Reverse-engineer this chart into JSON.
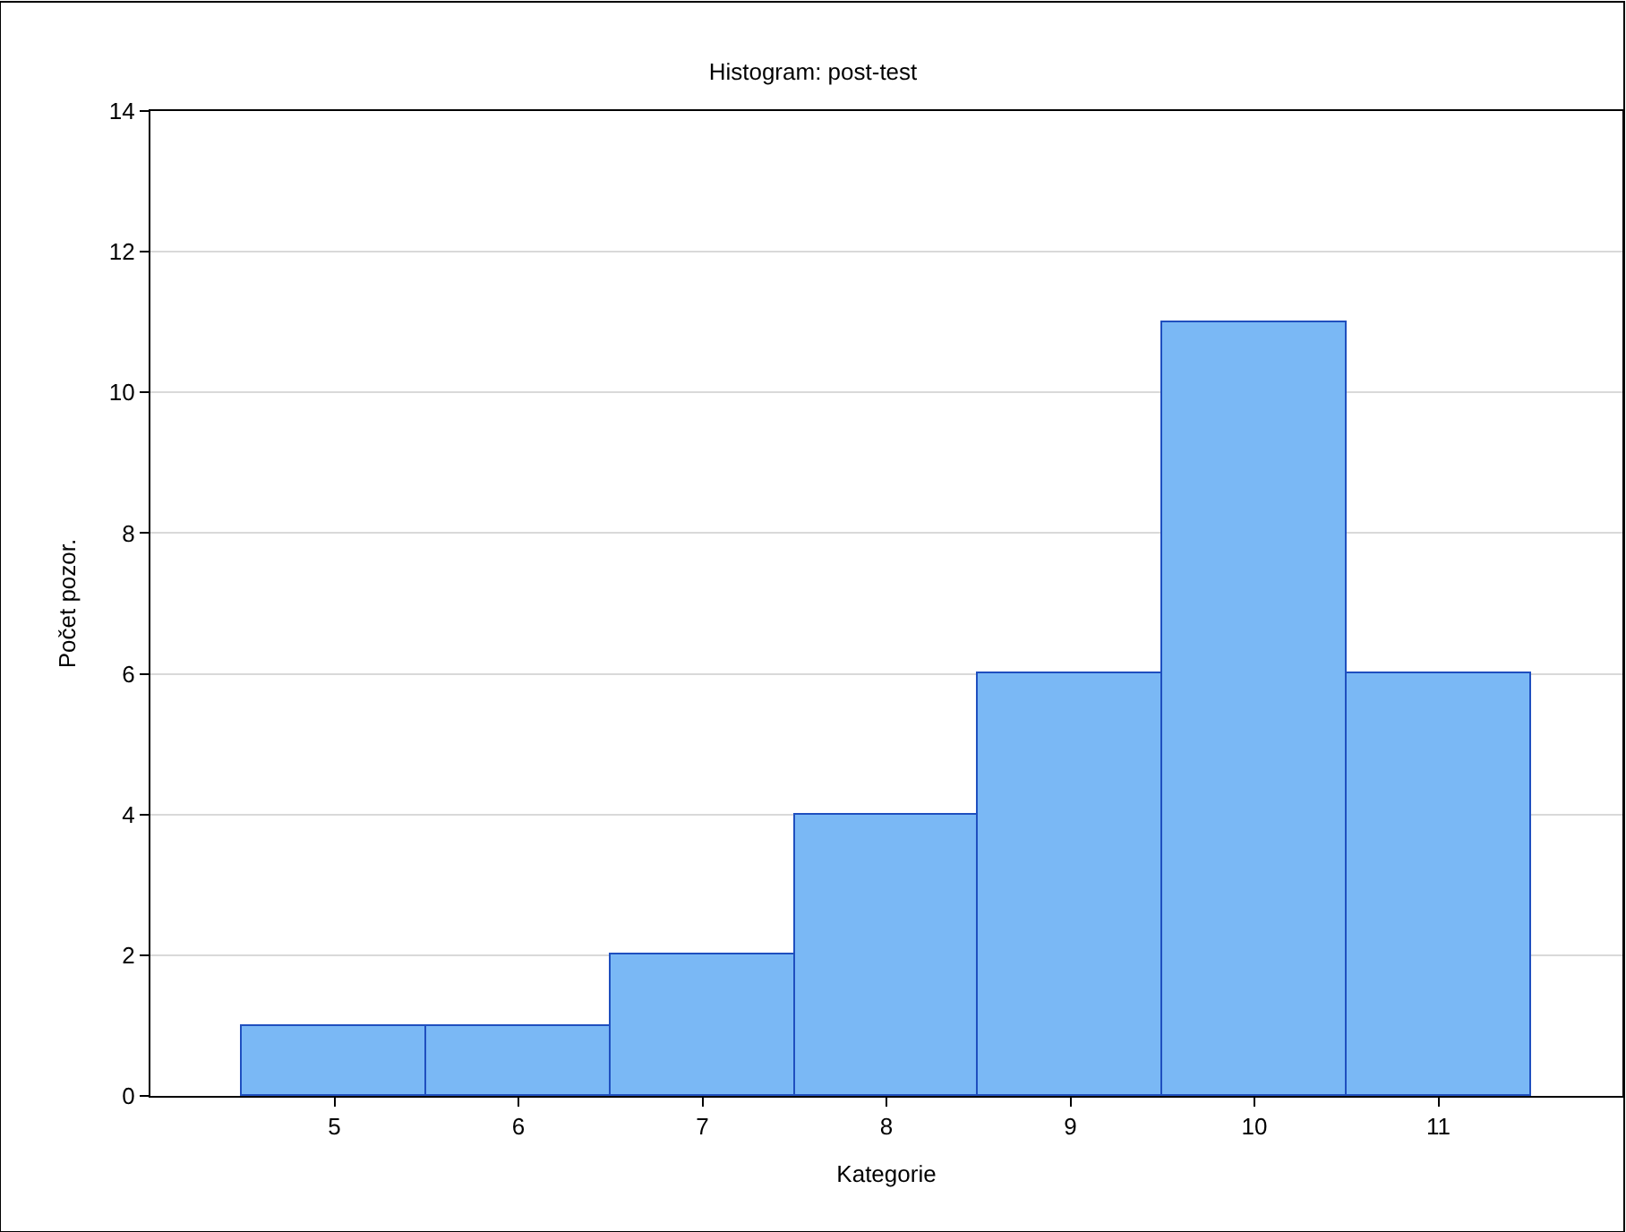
{
  "chart_data": {
    "type": "histogram",
    "title": "Histogram: post-test",
    "xlabel": "Kategorie",
    "ylabel": "Počet pozor.",
    "bins": [
      4.5,
      5.5,
      6.5,
      7.5,
      8.5,
      9.5,
      10.5,
      11.5
    ],
    "values": [
      1,
      1,
      2,
      4,
      6,
      11,
      6
    ],
    "color": "#7ab8f5",
    "xlim": [
      4,
      12
    ],
    "xticks": [
      5,
      6,
      7,
      8,
      9,
      10,
      11
    ],
    "ylim": [
      0,
      14
    ],
    "yticks": [
      0,
      2,
      4,
      6,
      8,
      10,
      12,
      14
    ],
    "grid": "y"
  }
}
